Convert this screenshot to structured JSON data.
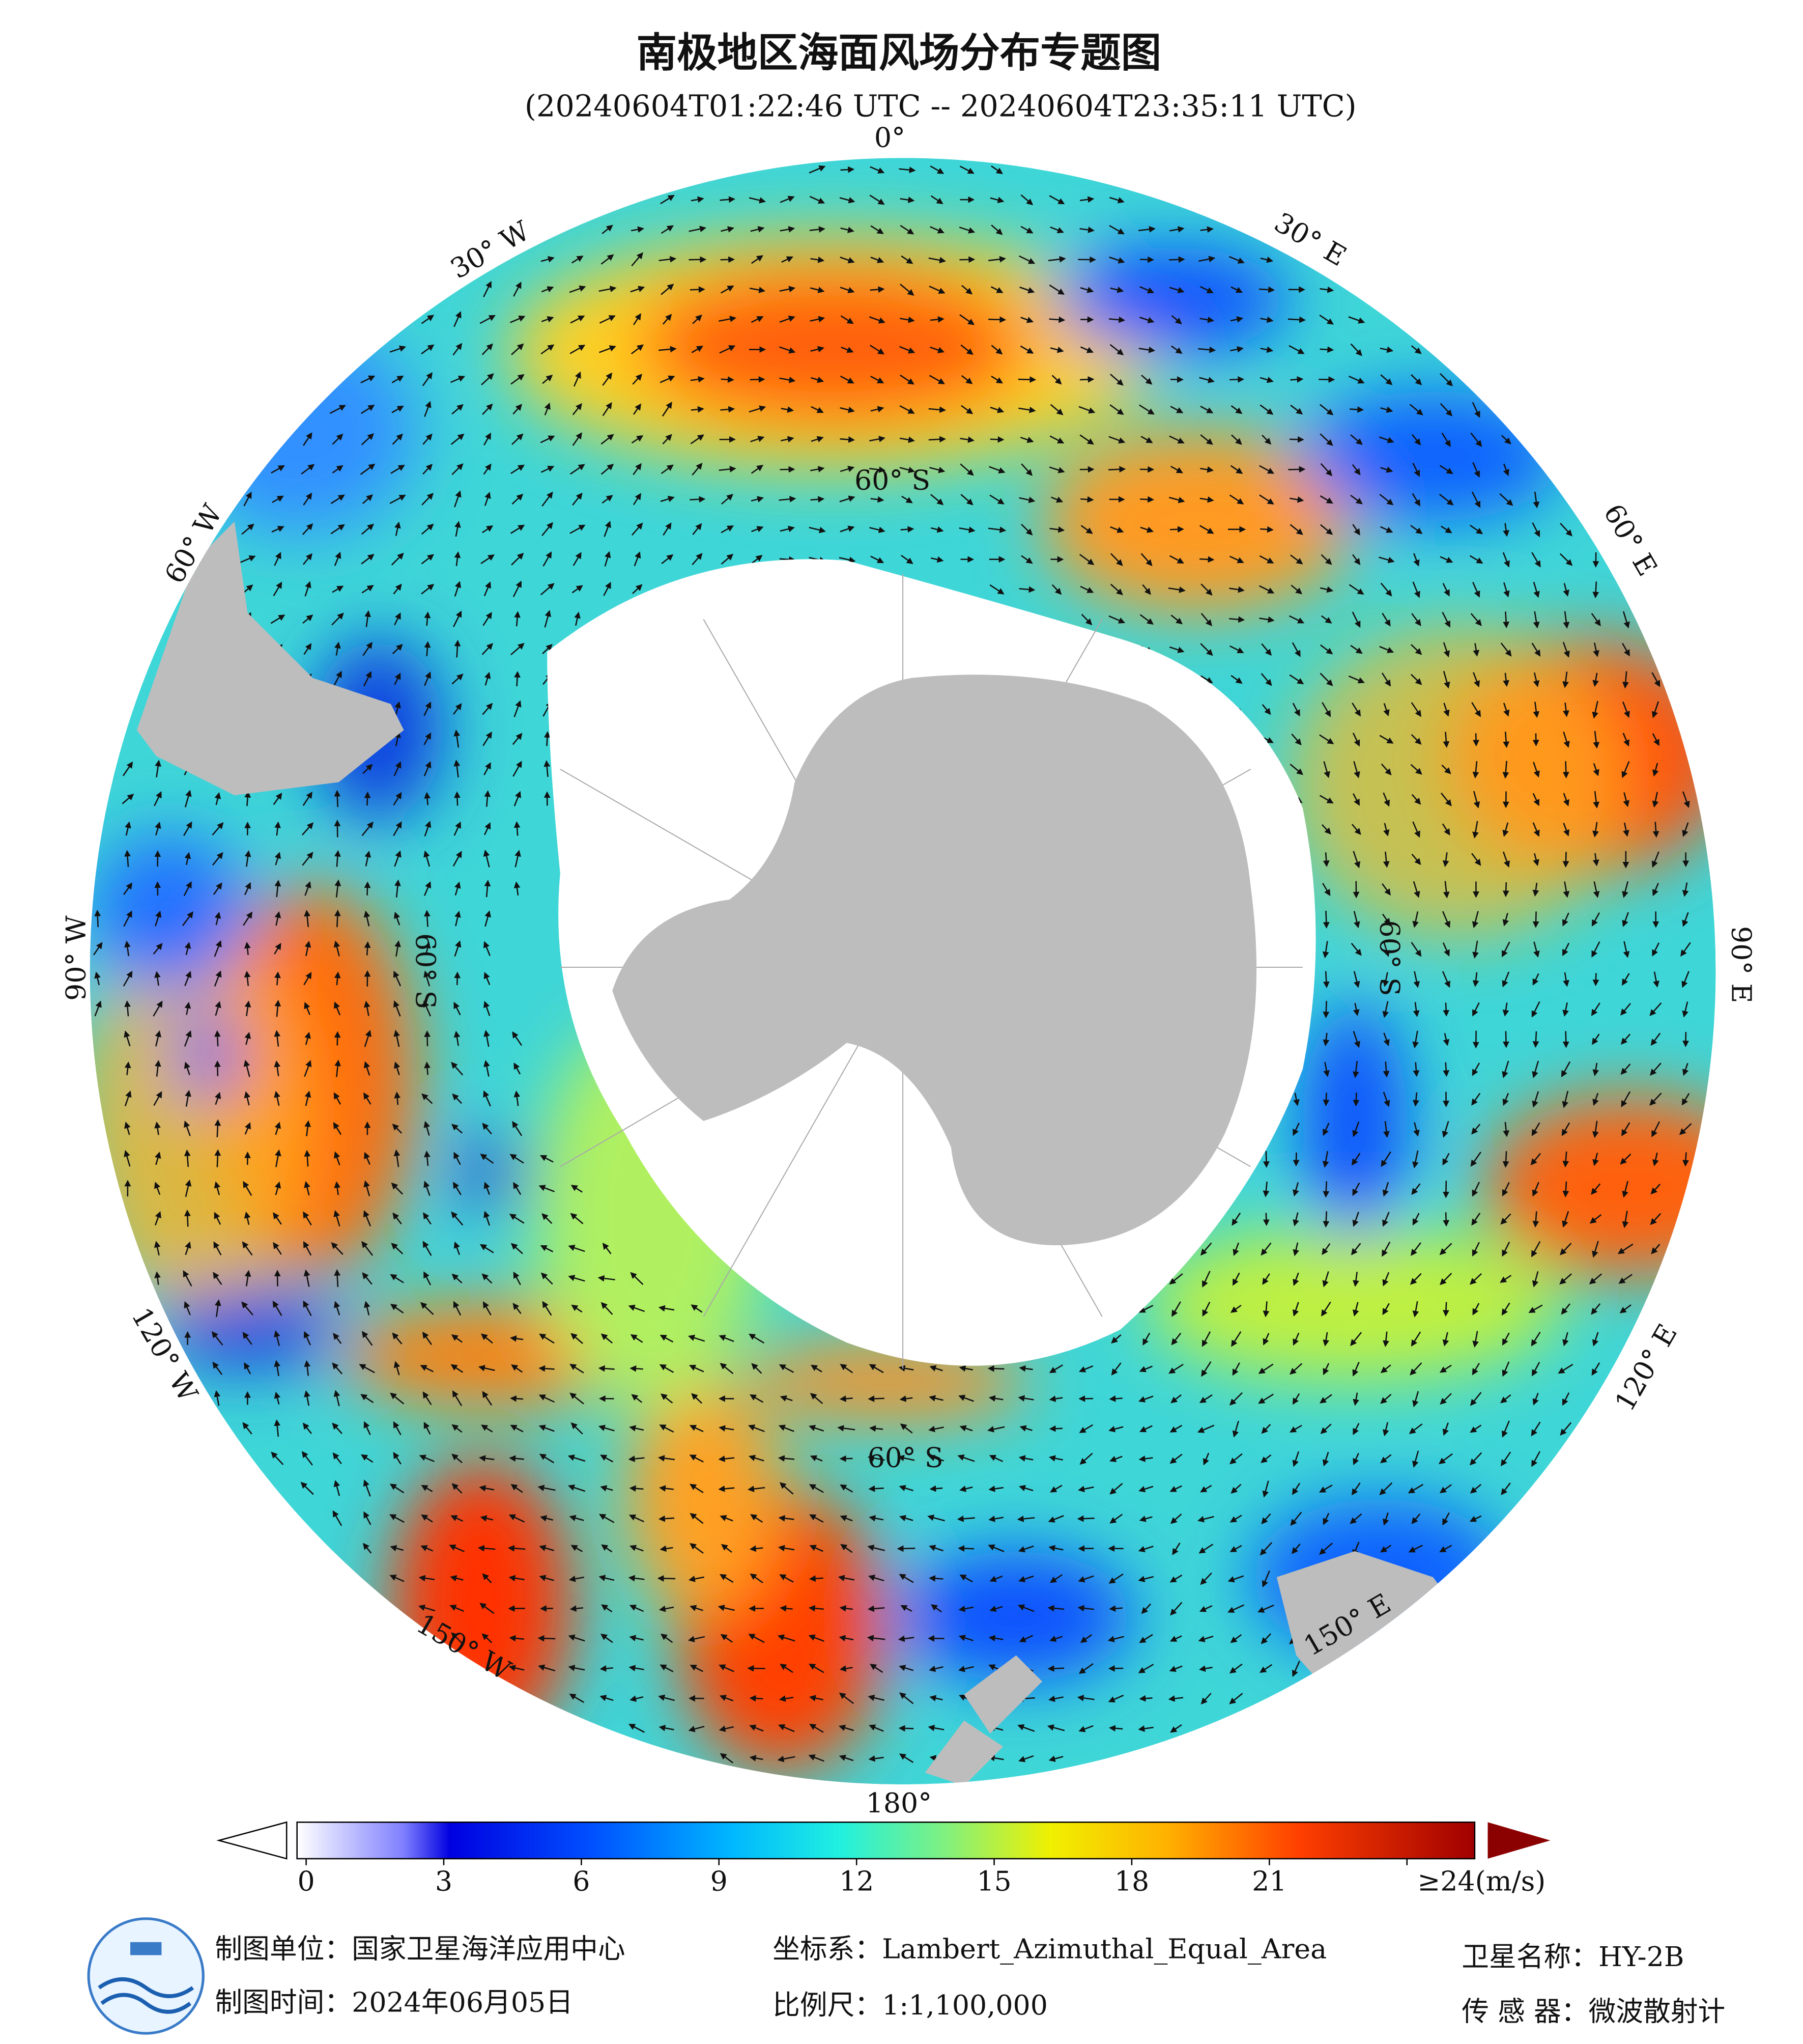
{
  "title": "南极地区海面风场分布专题图",
  "subtitle": "(20240604T01:22:46 UTC -- 20240604T23:35:11 UTC)",
  "map": {
    "longitude_labels": [
      "0°",
      "30° E",
      "60° E",
      "90° E",
      "120° E",
      "150° E",
      "180°",
      "150° W",
      "120° W",
      "90° W",
      "60° W",
      "30° W"
    ],
    "latitude_labels": [
      "60° S",
      "60° S",
      "60° S",
      "60° S"
    ]
  },
  "colorbar": {
    "ticks": [
      0,
      3,
      6,
      9,
      12,
      15,
      18,
      21,
      {
        "value": 24,
        "label": "≥24(m/s)"
      }
    ]
  },
  "footer": {
    "agency": "制图单位：国家卫星海洋应用中心",
    "date": "制图时间：2024年06月05日",
    "projection": "坐标系：Lambert_Azimuthal_Equal_Area",
    "scale": "比例尺：1:1,100,000",
    "satellite": "卫星名称：HY-2B",
    "sensor": "传 感 器：微波散射计"
  }
}
